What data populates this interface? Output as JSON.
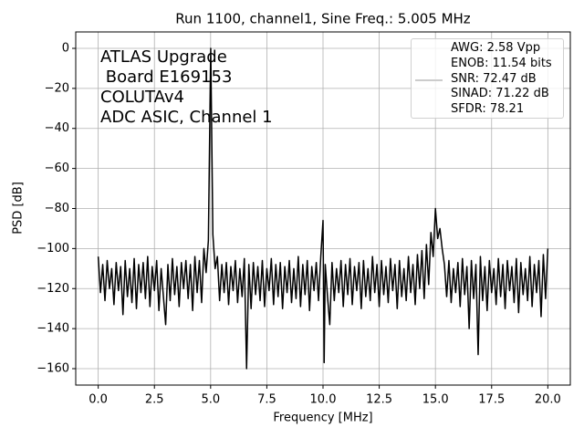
{
  "chart_data": {
    "type": "line",
    "title": "Run 1100, channel1, Sine Freq.: 5.005 MHz",
    "xlabel": "Frequency [MHz]",
    "ylabel": "PSD [dB]",
    "annotation": "ATLAS Upgrade\n Board E169153\nCOLUTAv4\nADC ASIC, Channel 1",
    "xlim": [
      -1.0,
      21.0
    ],
    "ylim": [
      -168.2,
      8.2
    ],
    "xticks": [
      {
        "value": 0,
        "label": "0.0"
      },
      2.5,
      {
        "value": 5,
        "label": "5.0"
      },
      7.5,
      {
        "value": 10,
        "label": "10.0"
      },
      12.5,
      {
        "value": 15,
        "label": "15.0"
      },
      17.5,
      {
        "value": 20,
        "label": "20.0"
      }
    ],
    "yticks": [
      0,
      {
        "value": -20,
        "label": "−20"
      },
      {
        "value": -40,
        "label": "−40"
      },
      {
        "value": -60,
        "label": "−60"
      },
      {
        "value": -80,
        "label": "−80"
      },
      {
        "value": -100,
        "label": "−100"
      },
      {
        "value": -120,
        "label": "−120"
      },
      {
        "value": -140,
        "label": "−140"
      },
      {
        "value": -160,
        "label": "−160"
      }
    ],
    "grid": true,
    "legend": "upper right",
    "x": [
      0,
      0.1,
      0.2,
      0.3,
      0.4,
      0.5,
      0.6,
      0.7,
      0.8,
      0.9,
      1.0,
      1.1,
      1.2,
      1.3,
      1.4,
      1.5,
      1.6,
      1.7,
      1.8,
      1.9,
      2.0,
      2.1,
      2.2,
      2.3,
      2.4,
      2.5,
      2.6,
      2.7,
      2.8,
      2.9,
      3.0,
      3.1,
      3.2,
      3.3,
      3.4,
      3.5,
      3.6,
      3.7,
      3.8,
      3.9,
      4.0,
      4.1,
      4.2,
      4.3,
      4.4,
      4.5,
      4.6,
      4.7,
      4.8,
      4.9,
      5.005,
      5.1,
      5.2,
      5.3,
      5.4,
      5.5,
      5.6,
      5.7,
      5.8,
      5.9,
      6.0,
      6.1,
      6.2,
      6.3,
      6.4,
      6.5,
      6.6,
      6.7,
      6.8,
      6.9,
      7.0,
      7.1,
      7.2,
      7.3,
      7.4,
      7.5,
      7.6,
      7.7,
      7.8,
      7.9,
      8.0,
      8.1,
      8.2,
      8.3,
      8.4,
      8.5,
      8.6,
      8.7,
      8.8,
      8.9,
      9.0,
      9.1,
      9.2,
      9.3,
      9.4,
      9.5,
      9.6,
      9.7,
      9.8,
      9.9,
      10.0,
      10.05,
      10.1,
      10.2,
      10.3,
      10.4,
      10.5,
      10.6,
      10.7,
      10.8,
      10.9,
      11.0,
      11.1,
      11.2,
      11.3,
      11.4,
      11.5,
      11.6,
      11.7,
      11.8,
      11.9,
      12.0,
      12.1,
      12.2,
      12.3,
      12.4,
      12.5,
      12.6,
      12.7,
      12.8,
      12.9,
      13.0,
      13.1,
      13.2,
      13.3,
      13.4,
      13.5,
      13.6,
      13.7,
      13.8,
      13.9,
      14.0,
      14.1,
      14.2,
      14.3,
      14.4,
      14.5,
      14.6,
      14.7,
      14.8,
      14.9,
      15.0,
      15.1,
      15.2,
      15.3,
      15.4,
      15.5,
      15.6,
      15.7,
      15.8,
      15.9,
      16.0,
      16.1,
      16.2,
      16.3,
      16.4,
      16.5,
      16.6,
      16.7,
      16.8,
      16.9,
      17.0,
      17.1,
      17.2,
      17.3,
      17.4,
      17.5,
      17.6,
      17.7,
      17.8,
      17.9,
      18.0,
      18.1,
      18.2,
      18.3,
      18.4,
      18.5,
      18.6,
      18.7,
      18.8,
      18.9,
      19.0,
      19.1,
      19.2,
      19.3,
      19.4,
      19.5,
      19.6,
      19.7,
      19.8,
      19.9,
      20.0
    ],
    "series": [
      {
        "name": "AWG: 2.58 Vpp\nENOB: 11.54 bits\nSNR: 72.47 dB\nSINAD: 71.22 dB\nSFDR: 78.21",
        "color": "#000000",
        "values": [
          -104,
          -122,
          -108,
          -126,
          -106,
          -120,
          -110,
          -128,
          -107,
          -121,
          -109,
          -133,
          -106,
          -124,
          -110,
          -127,
          -105,
          -130,
          -108,
          -122,
          -107,
          -125,
          -104,
          -129,
          -109,
          -121,
          -106,
          -131,
          -110,
          -124,
          -138,
          -108,
          -126,
          -105,
          -123,
          -109,
          -129,
          -107,
          -120,
          -106,
          -125,
          -108,
          -131,
          -104,
          -122,
          -106,
          -127,
          -100,
          -112,
          -96,
          0,
          -93,
          -110,
          -104,
          -126,
          -108,
          -122,
          -107,
          -128,
          -109,
          -121,
          -106,
          -127,
          -110,
          -124,
          -105,
          -160,
          -108,
          -130,
          -107,
          -123,
          -109,
          -126,
          -106,
          -129,
          -110,
          -121,
          -105,
          -128,
          -108,
          -124,
          -107,
          -130,
          -109,
          -122,
          -106,
          -127,
          -110,
          -125,
          -104,
          -129,
          -108,
          -123,
          -106,
          -131,
          -109,
          -121,
          -107,
          -126,
          -104,
          -86,
          -157,
          -108,
          -124,
          -138,
          -107,
          -126,
          -110,
          -122,
          -106,
          -129,
          -108,
          -123,
          -105,
          -128,
          -109,
          -121,
          -107,
          -130,
          -106,
          -124,
          -110,
          -126,
          -104,
          -122,
          -108,
          -129,
          -106,
          -123,
          -109,
          -127,
          -105,
          -121,
          -108,
          -130,
          -106,
          -124,
          -110,
          -126,
          -104,
          -122,
          -108,
          -128,
          -103,
          -120,
          -101,
          -125,
          -98,
          -118,
          -92,
          -104,
          -80,
          -95,
          -90,
          -100,
          -108,
          -124,
          -106,
          -127,
          -110,
          -122,
          -107,
          -129,
          -105,
          -123,
          -109,
          -140,
          -106,
          -125,
          -108,
          -153,
          -104,
          -126,
          -109,
          -131,
          -106,
          -122,
          -110,
          -128,
          -105,
          -124,
          -108,
          -130,
          -106,
          -121,
          -109,
          -127,
          -105,
          -132,
          -107,
          -123,
          -110,
          -126,
          -104,
          -129,
          -108,
          -122,
          -106,
          -134,
          -103,
          -125,
          -100
        ]
      }
    ]
  }
}
